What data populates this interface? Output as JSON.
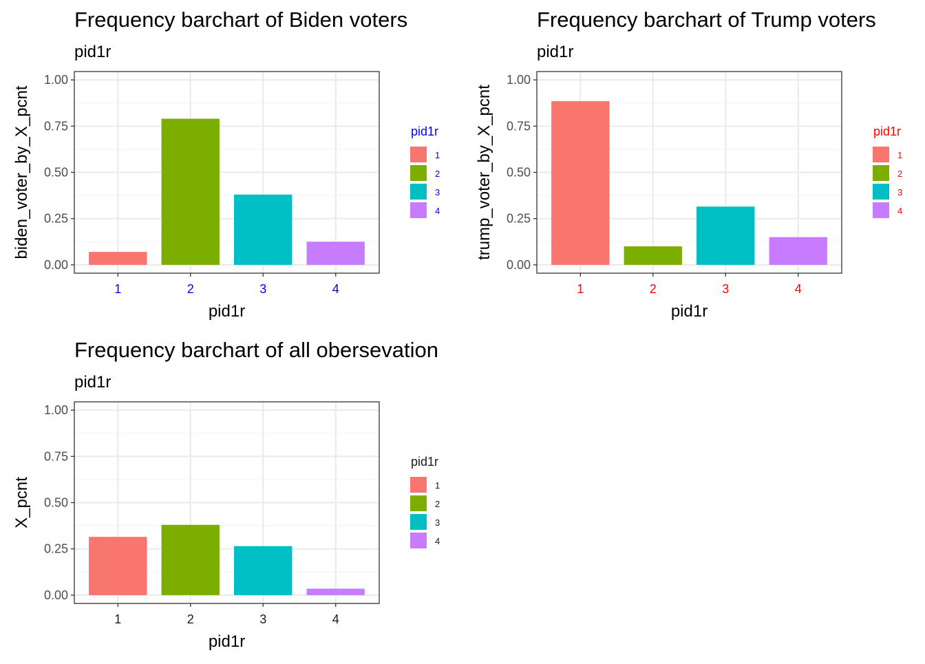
{
  "chart_data": [
    {
      "type": "bar",
      "title": "Frequency barchart of Biden voters",
      "subtitle": "pid1r",
      "xlabel": "pid1r",
      "ylabel": "biden_voter_by_X_pcnt",
      "categories": [
        "1",
        "2",
        "3",
        "4"
      ],
      "values": [
        0.07,
        0.79,
        0.38,
        0.125
      ],
      "ylim": [
        0,
        1
      ],
      "yticks": [
        "0.00",
        "0.25",
        "0.50",
        "0.75",
        "1.00"
      ],
      "grid": true,
      "legend": {
        "title": "pid1r",
        "position": "right",
        "labels": [
          "1",
          "2",
          "3",
          "4"
        ]
      },
      "label_color": "#0000FF"
    },
    {
      "type": "bar",
      "title": "Frequency barchart of Trump voters",
      "subtitle": "pid1r",
      "xlabel": "pid1r",
      "ylabel": "trump_voter_by_X_pcnt",
      "categories": [
        "1",
        "2",
        "3",
        "4"
      ],
      "values": [
        0.885,
        0.1,
        0.315,
        0.15
      ],
      "ylim": [
        0,
        1
      ],
      "yticks": [
        "0.00",
        "0.25",
        "0.50",
        "0.75",
        "1.00"
      ],
      "grid": true,
      "legend": {
        "title": "pid1r",
        "position": "right",
        "labels": [
          "1",
          "2",
          "3",
          "4"
        ]
      },
      "label_color": "#FF0000"
    },
    {
      "type": "bar",
      "title": "Frequency barchart of all obersevation",
      "subtitle": "pid1r",
      "xlabel": "pid1r",
      "ylabel": "X_pcnt",
      "categories": [
        "1",
        "2",
        "3",
        "4"
      ],
      "values": [
        0.315,
        0.38,
        0.265,
        0.035
      ],
      "ylim": [
        0,
        1
      ],
      "yticks": [
        "0.00",
        "0.25",
        "0.50",
        "0.75",
        "1.00"
      ],
      "grid": true,
      "legend": {
        "title": "pid1r",
        "position": "right",
        "labels": [
          "1",
          "2",
          "3",
          "4"
        ]
      },
      "label_color": "#1A1A1A"
    }
  ],
  "bar_colors": [
    "#F8766D",
    "#7CAE00",
    "#00BFC4",
    "#C77CFF"
  ],
  "colors": {
    "panel_border": "#333333",
    "grid_major": "#EBEBEB",
    "grid_minor": "#F5F5F5",
    "text": "#000000",
    "tick_text": "#4D4D4D"
  }
}
